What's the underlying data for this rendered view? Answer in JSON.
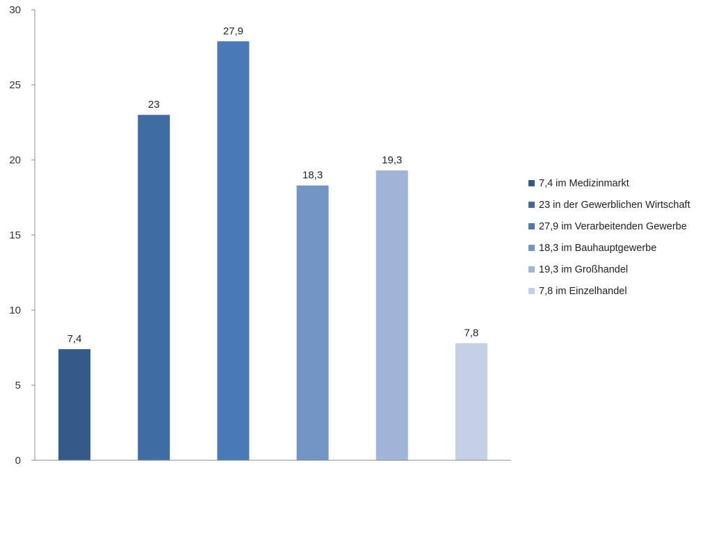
{
  "chart_data": {
    "type": "bar",
    "title": "",
    "xlabel": "",
    "ylabel": "",
    "ylim": [
      0,
      30
    ],
    "yticks": [
      0,
      5,
      10,
      15,
      20,
      25,
      30
    ],
    "grid": false,
    "legend_position": "right",
    "categories": [
      "7,4 im Medizinmarkt",
      "23 in der Gewerblichen Wirtschaft",
      "27,9 im Verarbeitenden Gewerbe",
      "18,3 im Bauhauptgewerbe",
      "19,3 im Großhandel",
      "7,8 im Einzelhandel"
    ],
    "values": [
      7.4,
      23,
      27.9,
      18.3,
      19.3,
      7.8
    ],
    "value_labels": [
      "7,4",
      "23",
      "27,9",
      "18,3",
      "19,3",
      "7,8"
    ],
    "colors": [
      "#345a8a",
      "#3f6da3",
      "#4979b7",
      "#7395c6",
      "#9fb4d6",
      "#c4d0e5"
    ]
  }
}
